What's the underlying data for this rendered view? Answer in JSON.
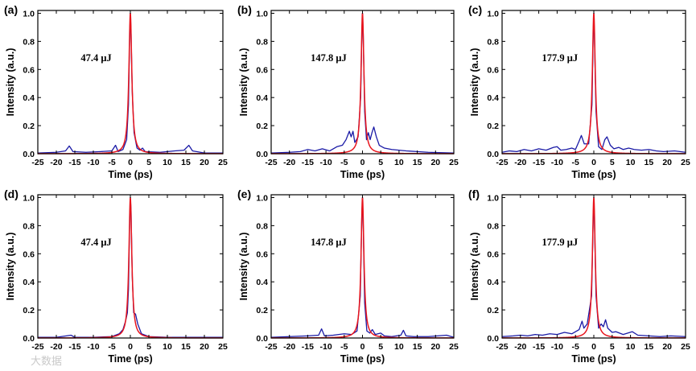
{
  "watermark": "大数据",
  "colors": {
    "measured": "#1a1aa6",
    "fit": "#e8141c"
  },
  "chart_data": [
    {
      "panel": "(a)",
      "type": "line",
      "annotation": "47.4 μJ",
      "xlabel": "Time (ps)",
      "ylabel": "Intensity (a.u.)",
      "xlim": [
        -25,
        25
      ],
      "ylim": [
        0,
        1.02
      ],
      "xticks": [
        -25,
        -20,
        -15,
        -10,
        -5,
        0,
        5,
        10,
        15,
        20,
        25
      ],
      "yticks": [
        0.0,
        0.2,
        0.4,
        0.6,
        0.8,
        1.0
      ],
      "series": [
        {
          "name": "measured",
          "color": "#1a1aa6",
          "points": [
            [
              -25,
              0.005
            ],
            [
              -20,
              0.01
            ],
            [
              -17.5,
              0.02
            ],
            [
              -16.5,
              0.055
            ],
            [
              -15.5,
              0.015
            ],
            [
              -12,
              0.01
            ],
            [
              -8,
              0.015
            ],
            [
              -5,
              0.02
            ],
            [
              -4,
              0.06
            ],
            [
              -3.3,
              0.015
            ],
            [
              -2,
              0.03
            ],
            [
              -1,
              0.1
            ],
            [
              -0.5,
              0.35
            ],
            [
              -0.2,
              0.8
            ],
            [
              0,
              1.0
            ],
            [
              0.2,
              0.85
            ],
            [
              0.5,
              0.45
            ],
            [
              1,
              0.15
            ],
            [
              1.8,
              0.04
            ],
            [
              2.6,
              0.025
            ],
            [
              3.3,
              0.04
            ],
            [
              4,
              0.015
            ],
            [
              8,
              0.01
            ],
            [
              12,
              0.02
            ],
            [
              14.5,
              0.025
            ],
            [
              15.8,
              0.06
            ],
            [
              16.8,
              0.02
            ],
            [
              20,
              0.005
            ],
            [
              25,
              0.005
            ]
          ]
        },
        {
          "name": "fit",
          "color": "#e8141c",
          "center": 0,
          "width": 0.48
        }
      ]
    },
    {
      "panel": "(b)",
      "type": "line",
      "annotation": "147.8 μJ",
      "xlabel": "Time (ps)",
      "ylabel": "Intensity (a.u.)",
      "xlim": [
        -25,
        25
      ],
      "ylim": [
        0,
        1.02
      ],
      "xticks": [
        -25,
        -20,
        -15,
        -10,
        -5,
        0,
        5,
        10,
        15,
        20,
        25
      ],
      "yticks": [
        0.0,
        0.2,
        0.4,
        0.6,
        0.8,
        1.0
      ],
      "series": [
        {
          "name": "measured",
          "color": "#1a1aa6",
          "points": [
            [
              -25,
              0.005
            ],
            [
              -20,
              0.01
            ],
            [
              -17,
              0.015
            ],
            [
              -15,
              0.03
            ],
            [
              -13,
              0.02
            ],
            [
              -11,
              0.035
            ],
            [
              -9,
              0.02
            ],
            [
              -7,
              0.05
            ],
            [
              -5.5,
              0.06
            ],
            [
              -4.5,
              0.1
            ],
            [
              -3.6,
              0.16
            ],
            [
              -3.1,
              0.12
            ],
            [
              -2.6,
              0.16
            ],
            [
              -2.1,
              0.08
            ],
            [
              -1.2,
              0.12
            ],
            [
              -0.5,
              0.4
            ],
            [
              -0.2,
              0.8
            ],
            [
              0,
              1.0
            ],
            [
              0.2,
              0.85
            ],
            [
              0.6,
              0.3
            ],
            [
              1.1,
              0.1
            ],
            [
              1.6,
              0.15
            ],
            [
              2.1,
              0.1
            ],
            [
              2.6,
              0.15
            ],
            [
              3.1,
              0.19
            ],
            [
              3.8,
              0.12
            ],
            [
              4.6,
              0.06
            ],
            [
              6,
              0.04
            ],
            [
              8,
              0.03
            ],
            [
              10,
              0.025
            ],
            [
              12,
              0.02
            ],
            [
              15,
              0.015
            ],
            [
              18,
              0.01
            ],
            [
              25,
              0.005
            ]
          ]
        },
        {
          "name": "fit",
          "color": "#e8141c",
          "center": 0,
          "width": 0.48
        }
      ]
    },
    {
      "panel": "(c)",
      "type": "line",
      "annotation": "177.9 μJ",
      "xlabel": "Time (ps)",
      "ylabel": "Intensity (a.u.)",
      "xlim": [
        -25,
        25
      ],
      "ylim": [
        0,
        1.02
      ],
      "xticks": [
        -25,
        -20,
        -15,
        -10,
        -5,
        0,
        5,
        10,
        15,
        20,
        25
      ],
      "yticks": [
        0.0,
        0.2,
        0.4,
        0.6,
        0.8,
        1.0
      ],
      "series": [
        {
          "name": "measured",
          "color": "#1a1aa6",
          "points": [
            [
              -25,
              0.01
            ],
            [
              -23,
              0.02
            ],
            [
              -21,
              0.015
            ],
            [
              -19,
              0.03
            ],
            [
              -17,
              0.02
            ],
            [
              -15,
              0.035
            ],
            [
              -13,
              0.025
            ],
            [
              -11,
              0.045
            ],
            [
              -10,
              0.05
            ],
            [
              -9,
              0.025
            ],
            [
              -7.5,
              0.03
            ],
            [
              -6,
              0.04
            ],
            [
              -5,
              0.03
            ],
            [
              -4,
              0.09
            ],
            [
              -3.4,
              0.13
            ],
            [
              -2.6,
              0.07
            ],
            [
              -1.4,
              0.07
            ],
            [
              -0.5,
              0.35
            ],
            [
              -0.2,
              0.8
            ],
            [
              0,
              1.0
            ],
            [
              0.2,
              0.8
            ],
            [
              0.6,
              0.3
            ],
            [
              1.3,
              0.05
            ],
            [
              2.2,
              0.03
            ],
            [
              3,
              0.1
            ],
            [
              3.6,
              0.12
            ],
            [
              4.5,
              0.06
            ],
            [
              5.5,
              0.035
            ],
            [
              6.8,
              0.045
            ],
            [
              8,
              0.03
            ],
            [
              9.5,
              0.04
            ],
            [
              11,
              0.03
            ],
            [
              13,
              0.025
            ],
            [
              15,
              0.03
            ],
            [
              17,
              0.02
            ],
            [
              19,
              0.015
            ],
            [
              22,
              0.02
            ],
            [
              25,
              0.01
            ]
          ]
        },
        {
          "name": "fit",
          "color": "#e8141c",
          "center": 0,
          "width": 0.48
        }
      ]
    },
    {
      "panel": "(d)",
      "type": "line",
      "annotation": "47.4 μJ",
      "xlabel": "Time (ps)",
      "ylabel": "Intensity (a.u.)",
      "xlim": [
        -25,
        25
      ],
      "ylim": [
        0,
        1.02
      ],
      "xticks": [
        -25,
        -20,
        -15,
        -10,
        -5,
        0,
        5,
        10,
        15,
        20,
        25
      ],
      "yticks": [
        0.0,
        0.2,
        0.4,
        0.6,
        0.8,
        1.0
      ],
      "series": [
        {
          "name": "measured",
          "color": "#1a1aa6",
          "points": [
            [
              -25,
              0.005
            ],
            [
              -20,
              0.005
            ],
            [
              -16,
              0.02
            ],
            [
              -15,
              0.005
            ],
            [
              -10,
              0.005
            ],
            [
              -5,
              0.01
            ],
            [
              -3,
              0.03
            ],
            [
              -2,
              0.06
            ],
            [
              -1.3,
              0.12
            ],
            [
              -0.8,
              0.18
            ],
            [
              -0.5,
              0.35
            ],
            [
              -0.2,
              0.8
            ],
            [
              0,
              1.0
            ],
            [
              0.2,
              0.9
            ],
            [
              0.5,
              0.45
            ],
            [
              0.9,
              0.18
            ],
            [
              1.4,
              0.17
            ],
            [
              2,
              0.1
            ],
            [
              3,
              0.03
            ],
            [
              5,
              0.01
            ],
            [
              10,
              0.005
            ],
            [
              15,
              0.005
            ],
            [
              20,
              0.005
            ],
            [
              25,
              0.005
            ]
          ]
        },
        {
          "name": "fit",
          "color": "#e8141c",
          "center": 0,
          "width": 0.48
        }
      ]
    },
    {
      "panel": "(e)",
      "type": "line",
      "annotation": "147.8 μJ",
      "xlabel": "Time (ps)",
      "ylabel": "Intensity (a.u.)",
      "xlim": [
        -25,
        25
      ],
      "ylim": [
        0,
        1.02
      ],
      "xticks": [
        -25,
        -20,
        -15,
        -10,
        -5,
        0,
        5,
        10,
        15,
        20,
        25
      ],
      "yticks": [
        0.0,
        0.2,
        0.4,
        0.6,
        0.8,
        1.0
      ],
      "series": [
        {
          "name": "measured",
          "color": "#1a1aa6",
          "points": [
            [
              -25,
              0.005
            ],
            [
              -20,
              0.01
            ],
            [
              -15,
              0.015
            ],
            [
              -12,
              0.02
            ],
            [
              -11.2,
              0.065
            ],
            [
              -10.4,
              0.015
            ],
            [
              -8,
              0.02
            ],
            [
              -5,
              0.03
            ],
            [
              -3,
              0.025
            ],
            [
              -1.5,
              0.05
            ],
            [
              -0.6,
              0.3
            ],
            [
              -0.2,
              0.85
            ],
            [
              0,
              1.0
            ],
            [
              0.2,
              0.8
            ],
            [
              0.6,
              0.25
            ],
            [
              1.2,
              0.05
            ],
            [
              2,
              0.035
            ],
            [
              2.7,
              0.06
            ],
            [
              3.5,
              0.025
            ],
            [
              5,
              0.035
            ],
            [
              6,
              0.015
            ],
            [
              8,
              0.01
            ],
            [
              10.5,
              0.02
            ],
            [
              11.2,
              0.055
            ],
            [
              11.9,
              0.015
            ],
            [
              14,
              0.01
            ],
            [
              18,
              0.01
            ],
            [
              23,
              0.02
            ],
            [
              25,
              0.005
            ]
          ]
        },
        {
          "name": "fit",
          "color": "#e8141c",
          "center": 0,
          "width": 0.48
        }
      ]
    },
    {
      "panel": "(f)",
      "type": "line",
      "annotation": "177.9 μJ",
      "xlabel": "Time (ps)",
      "ylabel": "Intensity (a.u.)",
      "xlim": [
        -25,
        25
      ],
      "ylim": [
        0,
        1.02
      ],
      "xticks": [
        -25,
        -20,
        -15,
        -10,
        -5,
        0,
        5,
        10,
        15,
        20,
        25
      ],
      "yticks": [
        0.0,
        0.2,
        0.4,
        0.6,
        0.8,
        1.0
      ],
      "series": [
        {
          "name": "measured",
          "color": "#1a1aa6",
          "points": [
            [
              -25,
              0.01
            ],
            [
              -22,
              0.015
            ],
            [
              -20,
              0.02
            ],
            [
              -18,
              0.015
            ],
            [
              -16,
              0.025
            ],
            [
              -14,
              0.02
            ],
            [
              -12,
              0.03
            ],
            [
              -10,
              0.025
            ],
            [
              -8,
              0.04
            ],
            [
              -6,
              0.03
            ],
            [
              -4,
              0.06
            ],
            [
              -3.2,
              0.12
            ],
            [
              -2.7,
              0.07
            ],
            [
              -1.8,
              0.1
            ],
            [
              -0.6,
              0.3
            ],
            [
              -0.2,
              0.8
            ],
            [
              0,
              1.0
            ],
            [
              0.2,
              0.8
            ],
            [
              0.6,
              0.3
            ],
            [
              1.3,
              0.07
            ],
            [
              2,
              0.1
            ],
            [
              2.6,
              0.08
            ],
            [
              3.2,
              0.13
            ],
            [
              3.8,
              0.07
            ],
            [
              5,
              0.04
            ],
            [
              6,
              0.045
            ],
            [
              8,
              0.025
            ],
            [
              10.5,
              0.045
            ],
            [
              12,
              0.02
            ],
            [
              15,
              0.015
            ],
            [
              18,
              0.01
            ],
            [
              21,
              0.015
            ],
            [
              25,
              0.01
            ]
          ]
        },
        {
          "name": "fit",
          "color": "#e8141c",
          "center": 0,
          "width": 0.48
        }
      ]
    }
  ]
}
